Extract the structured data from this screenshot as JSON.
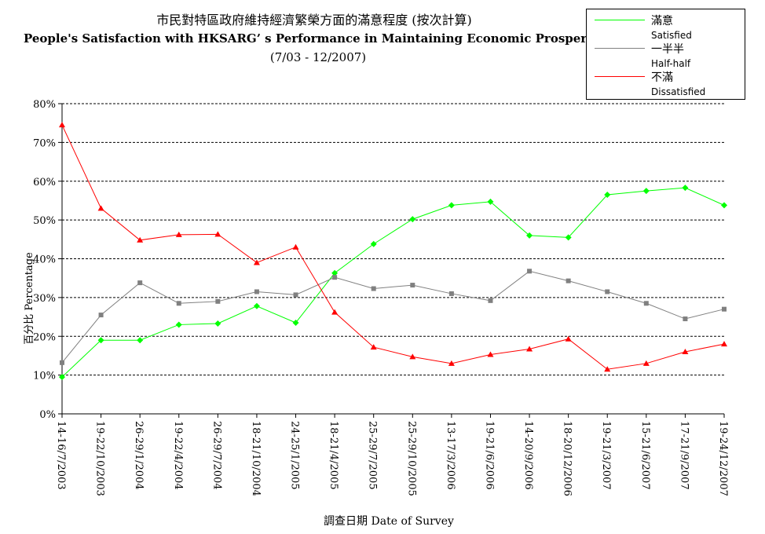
{
  "chart_data": {
    "type": "line",
    "title": "市民對特區政府維持經濟繁榮方面的滿意程度 (按次計算)",
    "subtitle": "People's Satisfaction with HKSARG’ s Performance in Maintaining Economic Prosperity (per poll)",
    "period": "(7/03 - 12/2007)",
    "xlabel": "調查日期 Date of Survey",
    "ylabel": "百分比 Percentage",
    "ylim": [
      0,
      80
    ],
    "yticks": [
      "0%",
      "10%",
      "20%",
      "30%",
      "40%",
      "50%",
      "60%",
      "70%",
      "80%"
    ],
    "grid": true,
    "legend_position": "top-right",
    "categories": [
      "14-16/7/2003",
      "19-22/10/2003",
      "26-29/1/2004",
      "19-22/4/2004",
      "26-29/7/2004",
      "18-21/10/2004",
      "24-25/1/2005",
      "18-21/4/2005",
      "25-29/7/2005",
      "25-29/10/2005",
      "13-17/3/2006",
      "19-21/6/2006",
      "14-20/9/2006",
      "18-20/12/2006",
      "19-21/3/2007",
      "15-21/6/2007",
      "17-21/9/2007",
      "19-24/12/2007"
    ],
    "series": [
      {
        "name": "滿意",
        "name_en": "Satisfied",
        "color": "#00ff00",
        "marker": "diamond",
        "values": [
          9.5,
          19,
          19,
          23,
          23.3,
          27.8,
          23.5,
          36.3,
          43.8,
          50.2,
          53.8,
          54.7,
          46,
          45.5,
          56.5,
          57.5,
          58.3,
          53.8
        ]
      },
      {
        "name": "一半半",
        "name_en": "Half-half",
        "color": "#808080",
        "marker": "square",
        "values": [
          13.2,
          25.5,
          33.8,
          28.5,
          29,
          31.5,
          30.7,
          35.2,
          32.3,
          33.2,
          31,
          29.2,
          36.8,
          34.3,
          31.5,
          28.5,
          24.5,
          27
        ]
      },
      {
        "name": "不滿",
        "name_en": "Dissatisfied",
        "color": "#ff0000",
        "marker": "triangle",
        "values": [
          74.5,
          53,
          44.8,
          46.2,
          46.3,
          39,
          43,
          26.2,
          17.2,
          14.7,
          13,
          15.3,
          16.7,
          19.3,
          11.5,
          13,
          16,
          18
        ]
      }
    ]
  }
}
